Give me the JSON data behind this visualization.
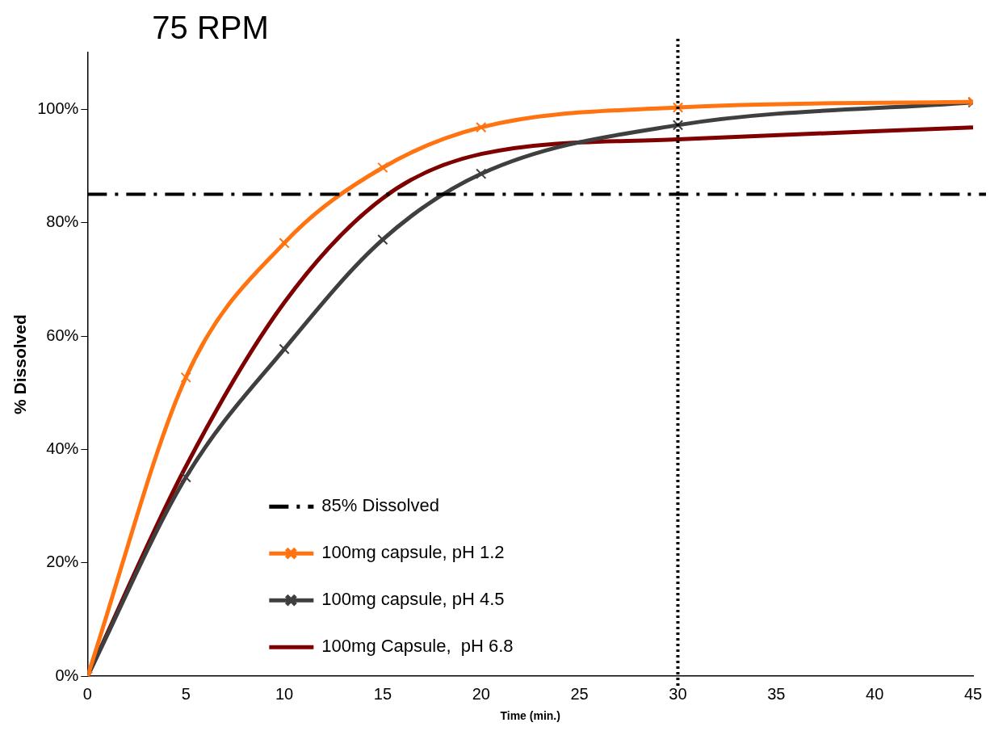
{
  "chart_data": {
    "type": "line",
    "title": "75 RPM",
    "xlabel": "Time (min.)",
    "ylabel": "% Dissolved",
    "xlim": [
      0,
      45
    ],
    "xticks": [
      0,
      5,
      10,
      15,
      20,
      25,
      30,
      35,
      40,
      45
    ],
    "ylim": [
      0,
      110
    ],
    "yticks": [
      {
        "value": 0,
        "label": "0%"
      },
      {
        "value": 20,
        "label": "20%"
      },
      {
        "value": 40,
        "label": "40%"
      },
      {
        "value": 60,
        "label": "60%"
      },
      {
        "value": 80,
        "label": "80%"
      },
      {
        "value": 100,
        "label": "100%"
      }
    ],
    "x": [
      0,
      5,
      10,
      15,
      20,
      30,
      45
    ],
    "series": [
      {
        "name": "100mg capsule, pH 1.2",
        "color": "#ff7410",
        "marker": "cross",
        "values": [
          0,
          52.7,
          76.4,
          89.7,
          96.8,
          100.3,
          101.3
        ]
      },
      {
        "name": "100mg capsule, pH 4.5",
        "color": "#3f3f3f",
        "marker": "cross",
        "values": [
          0,
          35.1,
          57.7,
          77.0,
          88.6,
          97.2,
          101.2
        ]
      },
      {
        "name": "100mg Capsule,  pH 6.8",
        "color": "#7f0000",
        "marker": "none",
        "values": [
          0,
          37,
          65.9,
          84.3,
          92.1,
          94.7,
          96.8
        ]
      }
    ],
    "ref_lines": [
      {
        "axis": "y",
        "value": 85,
        "label": "85% Dissolved",
        "color": "#000000",
        "line_style": "dashed"
      },
      {
        "axis": "x",
        "value": 30,
        "color": "#000000",
        "line_style": "dotted"
      }
    ],
    "grid": false,
    "legend": "bottom"
  }
}
